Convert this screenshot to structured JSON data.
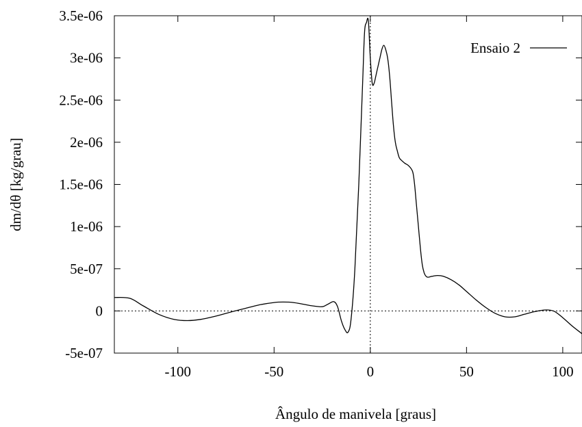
{
  "chart_data": {
    "type": "line",
    "title": "",
    "xlabel": "Ângulo de manivela  [graus]",
    "ylabel": "dm/dθ  [kg/grau]",
    "xlim": [
      -133,
      110
    ],
    "ylim": [
      -5e-07,
      3.5e-06
    ],
    "x_ticks": [
      -100,
      -50,
      0,
      50,
      100
    ],
    "x_tick_labels": [
      "-100",
      "-50",
      "0",
      "50",
      "100"
    ],
    "y_ticks": [
      -5e-07,
      0,
      5e-07,
      1e-06,
      1.5e-06,
      2e-06,
      2.5e-06,
      3e-06,
      3.5e-06
    ],
    "y_tick_labels": [
      "-5e-07",
      "0",
      "5e-07",
      "1e-06",
      "1.5e-06",
      "2e-06",
      "2.5e-06",
      "3e-06",
      "3.5e-06"
    ],
    "grid": false,
    "reference_lines": {
      "zero_x": true,
      "zero_y": true,
      "style": "dotted"
    },
    "legend": {
      "position": "top-right",
      "entries": [
        "Ensaio 2"
      ]
    },
    "series": [
      {
        "name": "Ensaio 2",
        "color": "#000000",
        "x": [
          -133,
          -125,
          -118,
          -110,
          -102,
          -95,
          -88,
          -80,
          -72,
          -65,
          -58,
          -50,
          -45,
          -40,
          -35,
          -30,
          -25,
          -22,
          -19,
          -17,
          -15,
          -13,
          -11.5,
          -10,
          -8,
          -6,
          -4,
          -3,
          -2,
          -1,
          0,
          1,
          2,
          3,
          4,
          5,
          6,
          7,
          8,
          9,
          10,
          11,
          12,
          13,
          14,
          15,
          16,
          18,
          20,
          22,
          23,
          24,
          25,
          26,
          27,
          28,
          29,
          30,
          32,
          35,
          38,
          42,
          46,
          50,
          55,
          60,
          65,
          70,
          75,
          80,
          85,
          90,
          93,
          96,
          100,
          105,
          110
        ],
        "y": [
          1.6e-07,
          1.5e-07,
          6e-08,
          -4e-08,
          -1e-07,
          -1.15e-07,
          -1e-07,
          -6e-08,
          -1e-08,
          3e-08,
          7e-08,
          1e-07,
          1.05e-07,
          1e-07,
          8e-08,
          6e-08,
          5e-08,
          8e-08,
          1.1e-07,
          5e-08,
          -1.2e-07,
          -2.3e-07,
          -2.5e-07,
          -1e-07,
          5e-07,
          1.5e-06,
          2.7e-06,
          3.3e-06,
          3.42e-06,
          3.44e-06,
          3e-06,
          2.7e-06,
          2.7e-06,
          2.8e-06,
          2.9e-06,
          3e-06,
          3.1e-06,
          3.15e-06,
          3.1e-06,
          3e-06,
          2.8e-06,
          2.5e-06,
          2.2e-06,
          2e-06,
          1.9e-06,
          1.82e-06,
          1.79e-06,
          1.75e-06,
          1.72e-06,
          1.65e-06,
          1.5e-06,
          1.25e-06,
          1e-06,
          7.5e-07,
          5.5e-07,
          4.5e-07,
          4.1e-07,
          4e-07,
          4.1e-07,
          4.2e-07,
          4.1e-07,
          3.7e-07,
          3.1e-07,
          2.3e-07,
          1.3e-07,
          4e-08,
          -3e-08,
          -7e-08,
          -7e-08,
          -4e-08,
          -1e-08,
          1e-08,
          1e-08,
          -1e-08,
          -8e-08,
          -1.8e-07,
          -2.7e-07
        ]
      }
    ]
  }
}
